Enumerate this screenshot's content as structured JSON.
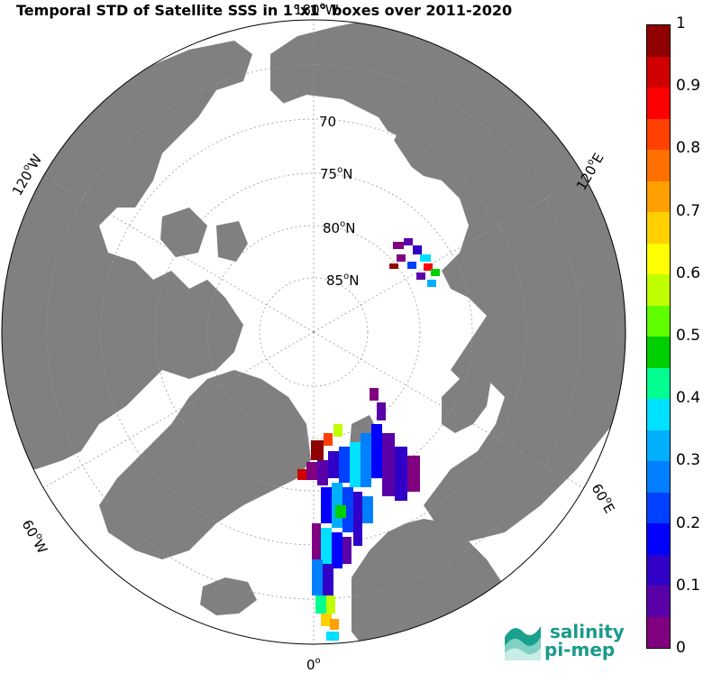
{
  "title": "Temporal STD of Satellite SSS in 1°x1° boxes over 2011-2020",
  "map": {
    "projection": "north-polar-stereographic",
    "land_color": "#808080",
    "ocean_color": "#ffffff",
    "lat_labels": [
      {
        "deg": "70",
        "sup": "",
        "suffix": ""
      },
      {
        "deg": "75",
        "sup": "o",
        "suffix": "N"
      },
      {
        "deg": "80",
        "sup": "o",
        "suffix": "N"
      },
      {
        "deg": "85",
        "sup": "o",
        "suffix": "N"
      }
    ],
    "lon_labels": [
      {
        "id": "lon-0",
        "text": "0",
        "sup": "o",
        "suffix": ""
      },
      {
        "id": "lon-60w",
        "text": "60",
        "sup": "o",
        "suffix": "W"
      },
      {
        "id": "lon-120w",
        "text": "120",
        "sup": "o",
        "suffix": "W"
      },
      {
        "id": "lon-180",
        "text": "180",
        "sup": "o",
        "suffix": "W"
      },
      {
        "id": "lon-120e",
        "text": "120",
        "sup": "o",
        "suffix": "E"
      },
      {
        "id": "lon-60e",
        "text": "60",
        "sup": "o",
        "suffix": "E"
      }
    ]
  },
  "colorbar": {
    "min": 0,
    "max": 1,
    "colors": [
      "#800080",
      "#5a00a8",
      "#3000c8",
      "#0000ff",
      "#0040ff",
      "#0080ff",
      "#00b0ff",
      "#00e0ff",
      "#00ff90",
      "#00d000",
      "#60ff00",
      "#c0ff00",
      "#ffff00",
      "#ffd000",
      "#ffa000",
      "#ff7000",
      "#ff4000",
      "#ff0000",
      "#d00000",
      "#900000"
    ],
    "ticks": [
      "1",
      "0.9",
      "0.8",
      "0.7",
      "0.6",
      "0.5",
      "0.4",
      "0.3",
      "0.2",
      "0.1",
      "0"
    ]
  },
  "logo": {
    "line1": "salinity",
    "line2": "pi-mep"
  }
}
